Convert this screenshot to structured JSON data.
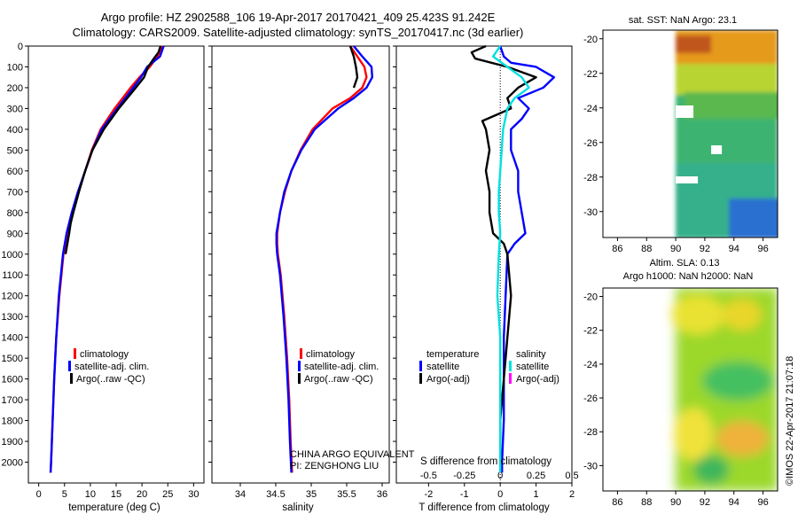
{
  "title": {
    "line1": "Argo profile: HZ 2902588_106 19-Apr-2017 20170421_409 25.423S 91.242E",
    "line2": "Climatology: CARS2009. Satellite-adjusted climatology: synTS_20170417.nc (3d earlier)"
  },
  "colors": {
    "climatology": "#ff0000",
    "satellite": "#0000ff",
    "argo": "#000000",
    "sat_salinity": "#00e0e0",
    "argo_salinity": "#ff00ff"
  },
  "credits": {
    "line1": "CHINA ARGO EQUIVALENT",
    "line2": "PI: ZENGHONG LIU"
  },
  "timestamp": "©IMOS 22-Apr-2017 21:07:18",
  "chart_data": [
    {
      "id": "temperature",
      "type": "line",
      "xlabel": "temperature (deg C)",
      "ylabel": "",
      "xlim": [
        -2,
        32
      ],
      "ylim": [
        2100,
        0
      ],
      "xticks": [
        0,
        5,
        10,
        15,
        20,
        25,
        30
      ],
      "yticks": [
        0,
        100,
        200,
        300,
        400,
        500,
        600,
        700,
        800,
        900,
        1000,
        1100,
        1200,
        1300,
        1400,
        1500,
        1600,
        1700,
        1800,
        1900,
        2000
      ],
      "legend": [
        "climatology",
        "satellite-adj. clim.",
        "Argo(..raw -QC)"
      ],
      "series": [
        {
          "name": "climatology",
          "color": "red",
          "depth": [
            0,
            50,
            100,
            150,
            200,
            300,
            400,
            500,
            600,
            700,
            800,
            900,
            1000,
            1200,
            1400,
            1600,
            1800,
            2000,
            2050
          ],
          "values": [
            24.0,
            23.0,
            21.5,
            19.5,
            17.8,
            14.7,
            12.0,
            10.3,
            9.0,
            7.7,
            6.6,
            5.5,
            4.8,
            4.0,
            3.4,
            3.0,
            2.7,
            2.4,
            2.3
          ]
        },
        {
          "name": "satellite-adj. clim.",
          "color": "blue",
          "depth": [
            0,
            50,
            100,
            150,
            200,
            300,
            400,
            500,
            600,
            700,
            800,
            900,
            1000,
            1200,
            1400,
            1600,
            1800,
            2000,
            2050
          ],
          "values": [
            24.2,
            23.5,
            21.0,
            19.8,
            18.3,
            15.2,
            12.2,
            10.4,
            9.0,
            7.6,
            6.4,
            5.4,
            4.7,
            3.9,
            3.4,
            3.0,
            2.7,
            2.4,
            2.3
          ]
        },
        {
          "name": "Argo(..raw -QC)",
          "color": "black",
          "depth": [
            0,
            30,
            60,
            100,
            150,
            200,
            300,
            400,
            500,
            600,
            700,
            800,
            850,
            900,
            1000
          ],
          "values": [
            23.6,
            23.2,
            22.3,
            21.2,
            20.4,
            18.8,
            15.5,
            12.6,
            10.4,
            9.0,
            7.8,
            6.7,
            6.2,
            5.9,
            5.2
          ]
        }
      ]
    },
    {
      "id": "salinity",
      "type": "line",
      "xlabel": "salinity",
      "xlim": [
        33.6,
        36.1
      ],
      "ylim": [
        2100,
        0
      ],
      "xticks": [
        34,
        34.5,
        35,
        35.5,
        36
      ],
      "legend": [
        "climatology",
        "satellite-adj. clim.",
        "Argo(..raw -QC)"
      ],
      "series": [
        {
          "name": "climatology",
          "color": "red",
          "depth": [
            0,
            50,
            100,
            150,
            200,
            250,
            300,
            400,
            500,
            600,
            700,
            800,
            900,
            950,
            1000,
            1100,
            1300,
            1500,
            1700,
            1900,
            2050
          ],
          "values": [
            35.55,
            35.65,
            35.75,
            35.78,
            35.72,
            35.55,
            35.3,
            35.02,
            34.85,
            34.72,
            34.63,
            34.56,
            34.52,
            34.52,
            34.53,
            34.57,
            34.62,
            34.66,
            34.69,
            34.71,
            34.73
          ]
        },
        {
          "name": "satellite-adj. clim.",
          "color": "blue",
          "depth": [
            0,
            50,
            100,
            150,
            200,
            250,
            300,
            400,
            500,
            600,
            700,
            800,
            900,
            950,
            1000,
            1100,
            1300,
            1500,
            1700,
            1900,
            2050
          ],
          "values": [
            35.6,
            35.72,
            35.85,
            35.86,
            35.78,
            35.6,
            35.38,
            35.05,
            34.86,
            34.72,
            34.62,
            34.56,
            34.51,
            34.51,
            34.52,
            34.56,
            34.61,
            34.65,
            34.68,
            34.7,
            34.72
          ]
        },
        {
          "name": "Argo(..raw -QC)",
          "color": "black",
          "depth": [
            0,
            50,
            100,
            150,
            200
          ],
          "values": [
            35.55,
            35.6,
            35.63,
            35.65,
            35.6
          ]
        }
      ]
    },
    {
      "id": "difference",
      "type": "line",
      "xlabel": "T difference from climatology",
      "xlabel2": "S difference from climatology",
      "xlim": [
        -2.9,
        2.0
      ],
      "ylim": [
        2100,
        0
      ],
      "xticks": [
        -2,
        -1,
        0,
        1,
        2
      ],
      "sticks": [
        -0.5,
        -0.25,
        0,
        0.25,
        0.5
      ],
      "legend_headers": [
        "temperature",
        "salinity"
      ],
      "legend": [
        "satellite",
        "Argo(-adj)",
        "satellite",
        "Argo(-adj)"
      ],
      "series": [
        {
          "name": "T satellite",
          "color": "blue",
          "depth": [
            0,
            50,
            80,
            100,
            150,
            200,
            250,
            300,
            350,
            400,
            500,
            600,
            700,
            800,
            900,
            950,
            1000,
            1200,
            1400,
            1600,
            1800,
            2000,
            2050
          ],
          "values": [
            0,
            0.1,
            0.3,
            1.0,
            1.5,
            1.2,
            0.5,
            0.8,
            0.6,
            0.3,
            0.3,
            0.5,
            0.5,
            0.6,
            0.7,
            0.4,
            0.2,
            0.15,
            0.1,
            0.1,
            0.1,
            0.05,
            0.05
          ]
        },
        {
          "name": "T Argo",
          "color": "black",
          "depth": [
            0,
            30,
            60,
            100,
            150,
            200,
            250,
            300,
            330,
            360,
            400,
            500,
            600,
            700,
            800,
            900,
            950,
            1000,
            1200,
            1400,
            1600,
            1800,
            2000,
            2050
          ],
          "values": [
            -0.4,
            -0.8,
            -0.7,
            0.2,
            1.0,
            0.5,
            0.2,
            0.3,
            -0.1,
            -0.5,
            -0.4,
            -0.3,
            -0.4,
            -0.3,
            -0.3,
            -0.2,
            0.1,
            0.2,
            0.3,
            0.2,
            0.1,
            0.0,
            0.0,
            0.0
          ]
        },
        {
          "name": "S satellite",
          "color": "cyan",
          "depth": [
            0,
            50,
            100,
            150,
            200,
            250,
            300,
            400,
            500,
            600,
            700,
            800,
            900,
            1000,
            1200,
            1400,
            1600,
            1800,
            2000,
            2050
          ],
          "values": [
            0,
            -0.05,
            0.05,
            0.15,
            0.2,
            0.1,
            0.05,
            0.02,
            0.01,
            0.0,
            -0.01,
            -0.01,
            0.0,
            -0.01,
            -0.02,
            0.0,
            0.0,
            0.0,
            0.0,
            0.0
          ]
        }
      ]
    },
    {
      "id": "sst-map",
      "type": "heatmap",
      "title": "sat. SST: NaN Argo: 23.1",
      "xlim": [
        85,
        97
      ],
      "ylim": [
        -31.5,
        -19.5
      ],
      "xticks": [
        86,
        88,
        90,
        92,
        94,
        96
      ],
      "yticks": [
        -20,
        -22,
        -24,
        -26,
        -28,
        -30
      ],
      "data_xrange": [
        90,
        97
      ]
    },
    {
      "id": "sla-map",
      "type": "heatmap",
      "title": "Altim. SLA: 0.13",
      "subtitle": "Argo h1000: NaN h2000: NaN",
      "xlim": [
        85,
        97
      ],
      "ylim": [
        -31.5,
        -19.5
      ],
      "xticks": [
        86,
        88,
        90,
        92,
        94,
        96
      ],
      "yticks": [
        -20,
        -22,
        -24,
        -26,
        -28,
        -30
      ],
      "data_xrange": [
        90,
        97
      ]
    }
  ]
}
